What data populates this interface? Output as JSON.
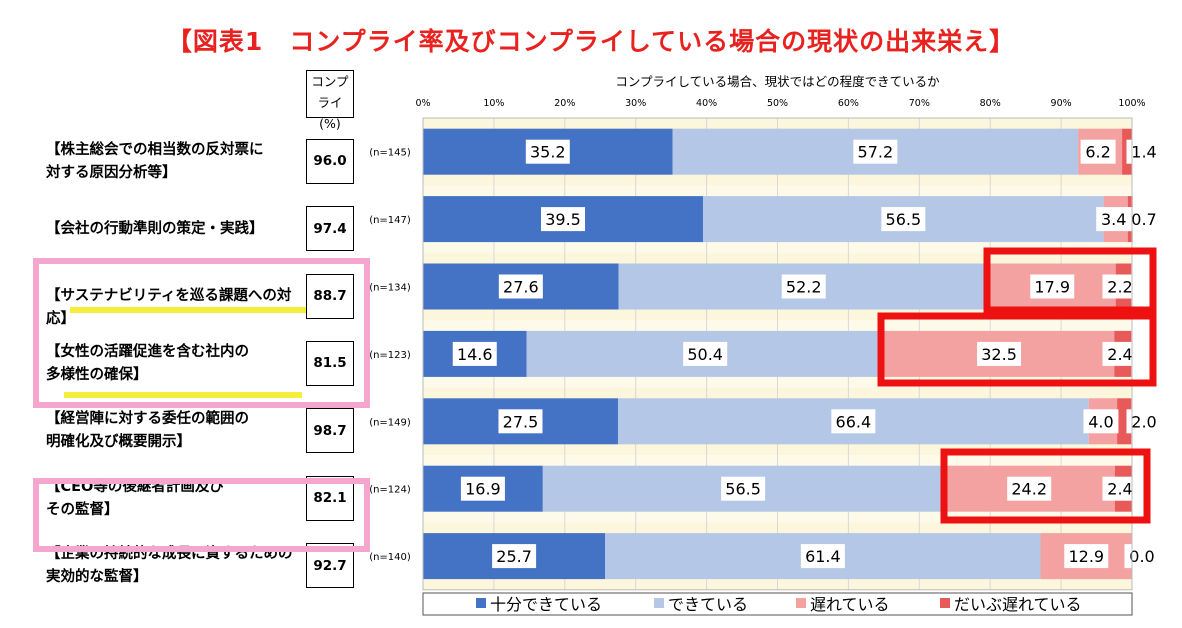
{
  "title": "【図表1　コンプライ率及びコンプライしている場合の現状の出来栄え】",
  "rate_header": [
    "コンプ",
    "ライ(%)"
  ],
  "categories": [
    {
      "label": [
        "【株主総会での相当数の反対票に",
        "対する原因分析等】"
      ],
      "rate": "96.0",
      "n": "(n=145)"
    },
    {
      "label": [
        "【会社の行動準則の策定・実践】"
      ],
      "rate": "97.4",
      "n": "(n=147)"
    },
    {
      "label": [
        "【サステナビリティを巡る課題への対応】"
      ],
      "rate": "88.7",
      "n": "(n=134)"
    },
    {
      "label": [
        "【女性の活躍促進を含む社内の",
        "多様性の確保】"
      ],
      "rate": "81.5",
      "n": "(n=123)"
    },
    {
      "label": [
        "【経営陣に対する委任の範囲の",
        "明確化及び概要開示】"
      ],
      "rate": "98.7",
      "n": "(n=149)"
    },
    {
      "label": [
        "【CEO等の後継者計画及び",
        "その監督】"
      ],
      "rate": "82.1",
      "n": "(n=124)"
    },
    {
      "label": [
        "【企業の持続的な成長に資するための",
        "実効的な監督】"
      ],
      "rate": "92.7",
      "n": "(n=140)"
    }
  ],
  "highlight_colors": {
    "pink": "#f4a6cf",
    "yellow": "#f5ef3b",
    "red": "#ee1111",
    "title": "#e8221f"
  },
  "chart_data": {
    "type": "bar",
    "orientation": "horizontal",
    "stacked": true,
    "title": "コンプライしている場合、現状ではどの程度できているか",
    "x_ticks": [
      "0%",
      "10%",
      "20%",
      "30%",
      "40%",
      "50%",
      "60%",
      "70%",
      "80%",
      "90%",
      "100%"
    ],
    "xlim": [
      0,
      100
    ],
    "legend_position": "bottom",
    "series": [
      {
        "name": "十分できている",
        "color": "#4472c4",
        "values": [
          35.2,
          39.5,
          27.6,
          14.6,
          27.5,
          16.9,
          25.7
        ]
      },
      {
        "name": "できている",
        "color": "#b4c7e7",
        "values": [
          57.2,
          56.5,
          52.2,
          50.4,
          66.4,
          56.5,
          61.4
        ]
      },
      {
        "name": "遅れている",
        "color": "#f4a1a1",
        "values": [
          6.2,
          3.4,
          17.9,
          32.5,
          4.0,
          24.2,
          12.9
        ]
      },
      {
        "name": "だいぶ遅れている",
        "color": "#e85a5a",
        "values": [
          1.4,
          0.7,
          2.2,
          2.4,
          2.0,
          2.4,
          0.0
        ]
      }
    ],
    "data_labels": [
      [
        "35.2",
        "57.2",
        "6.2",
        "1.4"
      ],
      [
        "39.5",
        "56.5",
        "3.4",
        "0.7"
      ],
      [
        "27.6",
        "52.2",
        "17.9",
        "2.2"
      ],
      [
        "14.6",
        "50.4",
        "32.5",
        "2.4"
      ],
      [
        "27.5",
        "66.4",
        "4.0",
        "2.0"
      ],
      [
        "16.9",
        "56.5",
        "24.2",
        "2.4"
      ],
      [
        "25.7",
        "61.4",
        "12.9",
        "0.0"
      ]
    ]
  }
}
